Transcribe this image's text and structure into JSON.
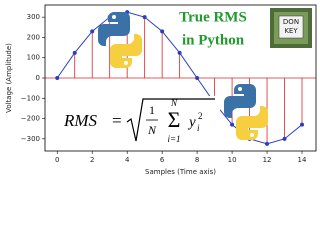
{
  "chart_data": {
    "type": "stem",
    "x": [
      0,
      1,
      2,
      3,
      4,
      5,
      6,
      7,
      8,
      9,
      10,
      11,
      12,
      13,
      14
    ],
    "values": [
      0,
      124,
      230,
      300,
      325,
      300,
      230,
      124,
      0,
      -124,
      -230,
      -300,
      -325,
      -300,
      -230
    ],
    "line_color": "#2a3fc0",
    "stem_color": "#d62728",
    "xlim": [
      -0.7,
      14.8
    ],
    "xticks": [
      0,
      2,
      4,
      6,
      8,
      10,
      12,
      14
    ],
    "ylim": [
      -360,
      360
    ],
    "yticks": [
      {
        "value": -300,
        "label": "−300"
      },
      {
        "value": -200,
        "label": "−200"
      },
      {
        "value": -100,
        "label": "−100"
      },
      0,
      100,
      200,
      300
    ],
    "xlabel": "Samples (Time axis)",
    "ylabel": "Voltage (Amplitude)"
  },
  "overlay": {
    "title_line1": "True RMS",
    "title_line2": "in Python",
    "badge_line1": "DON",
    "badge_line2": "KEY",
    "formula": {
      "lhs": "RMS",
      "eq": "=",
      "num": "1",
      "den": "N",
      "sum": "Σ",
      "upper": "N",
      "lower": "i=1",
      "term": "y",
      "sub": "i",
      "sup": "2"
    }
  }
}
